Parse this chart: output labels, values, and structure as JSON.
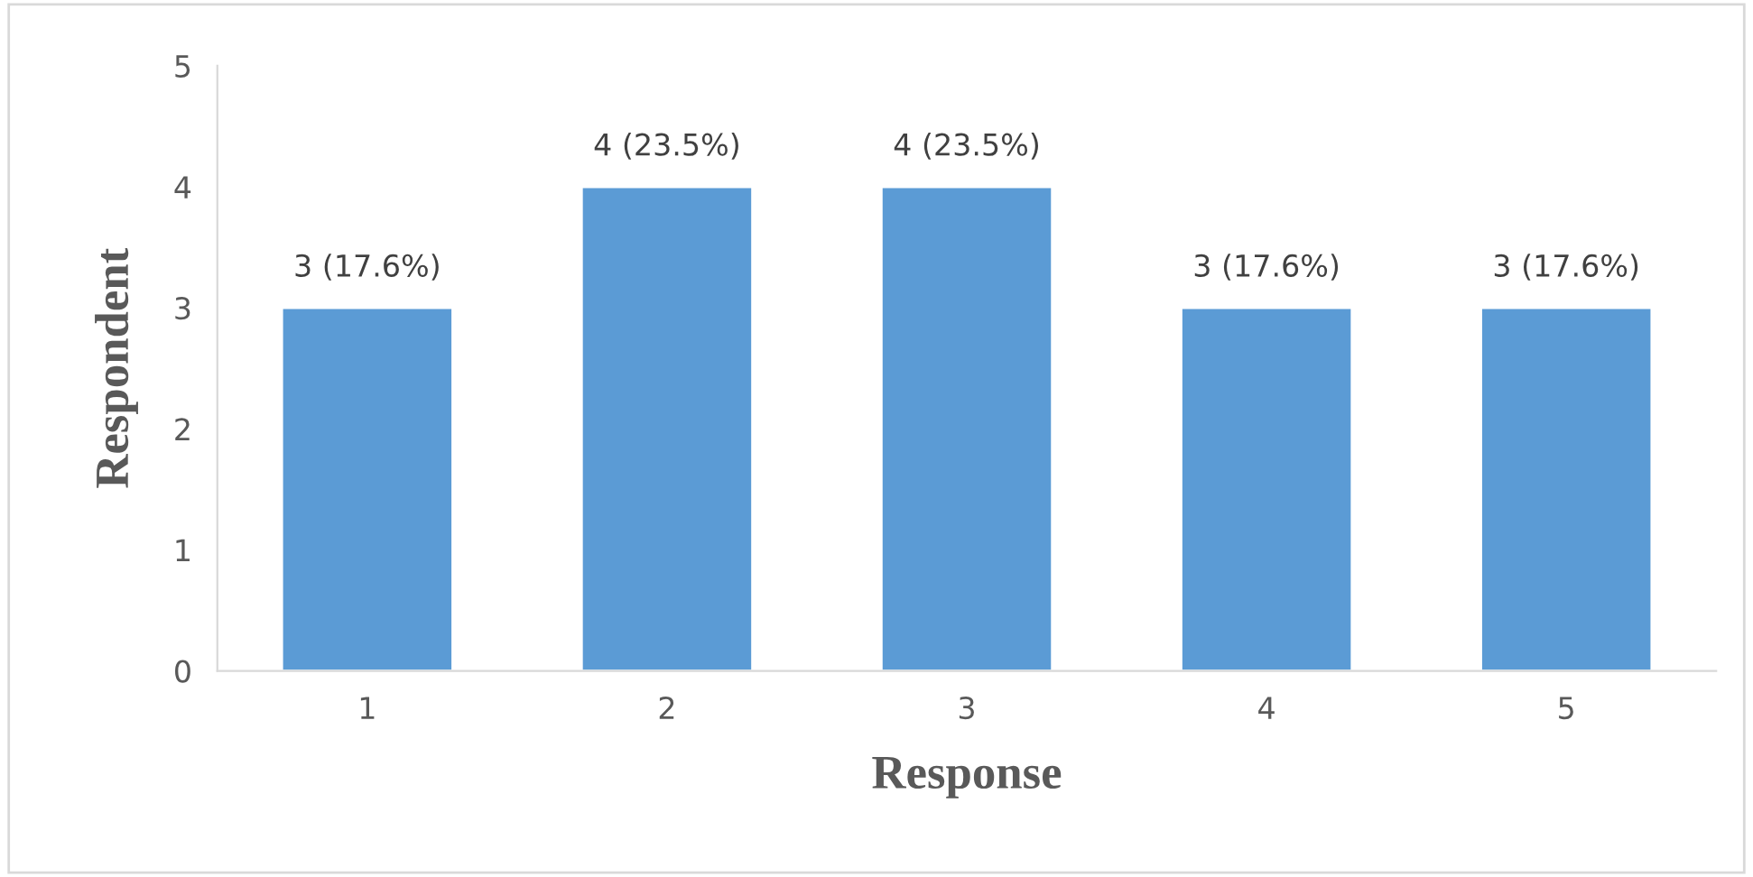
{
  "chart_data": {
    "type": "bar",
    "xlabel": "Response",
    "ylabel": "Respondent",
    "categories": [
      "1",
      "2",
      "3",
      "4",
      "5"
    ],
    "series": [
      {
        "color": "#5b9bd5",
        "values": [
          3,
          4,
          4,
          3,
          3
        ],
        "value_labels": [
          "3 (17.6%)",
          "4 (23.5%)",
          "4 (23.5%)",
          "3 (17.6%)",
          "3 (17.6%)"
        ]
      }
    ],
    "ylim": [
      0,
      5
    ],
    "yticks": [
      0,
      1,
      2,
      3,
      4,
      5
    ],
    "grid": false,
    "legend": false
  }
}
